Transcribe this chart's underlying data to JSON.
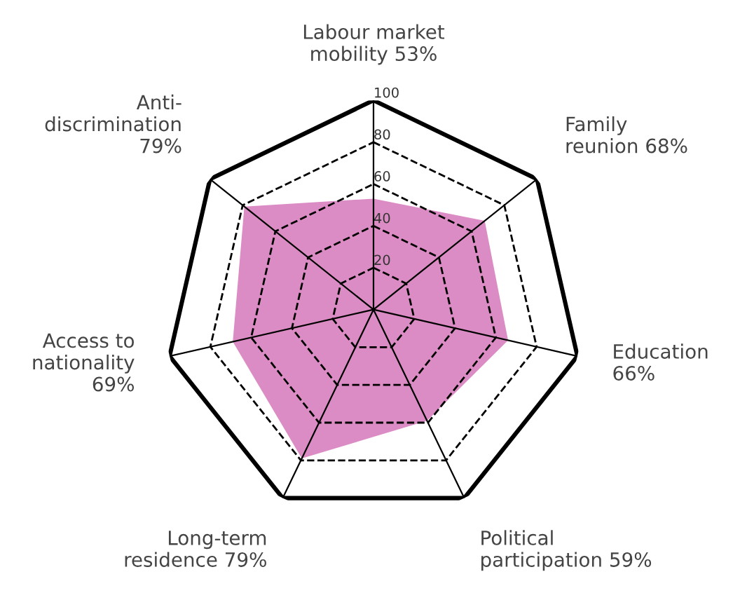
{
  "chart_data": {
    "type": "radar",
    "categories": [
      "Labour market\nmobility 53%",
      "Family\nreunion 68%",
      "Education\n66%",
      "Political\nparticipation 59%",
      "Long-term\nresidence 79%",
      "Access to\nnationality\n69%",
      "Anti-\ndiscrimination\n79%"
    ],
    "series": [
      {
        "color": "#dc8cc4",
        "values": [
          53,
          68,
          66,
          59,
          79,
          69,
          79
        ]
      }
    ],
    "ylim": [
      0,
      100
    ],
    "yticks": [
      20,
      40,
      60,
      80,
      100
    ],
    "grid": true,
    "line_style": "dashed"
  }
}
